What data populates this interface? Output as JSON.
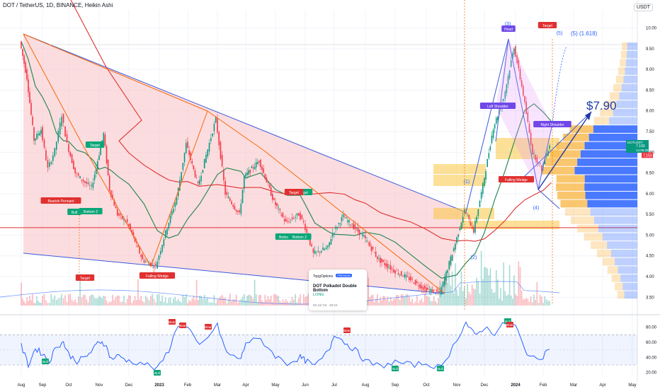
{
  "header": {
    "title": "DOT / TetherUS, 1D, BINANCE, Heikin Ashi",
    "unit_badge": "USDT"
  },
  "colors": {
    "bull": "#089981",
    "bear": "#f23645",
    "ma_green": "#2e8b57",
    "ma_red": "#e03131",
    "rsi": "#2962ff",
    "wedge_fill": "#f8b4b8",
    "zone": "#f9c742",
    "profile_blue": "#2962ff",
    "profile_orange": "#f9b84a",
    "projection": "#1e3aa8"
  },
  "chart_data": [
    {
      "type": "candlestick",
      "title": "DOT / TetherUS, 1D, BINANCE, Heikin Ashi",
      "x_ticks": [
        "Aug",
        "Sep",
        "Oct",
        "Nov",
        "Dec",
        "2023",
        "Feb",
        "Mar",
        "Apr",
        "May",
        "Jun",
        "Jul",
        "Aug",
        "Sep",
        "Oct",
        "Nov",
        "Dec",
        "2024",
        "Feb",
        "Mar",
        "Apr",
        "May"
      ],
      "y_ticks": [
        "3.50",
        "4.00",
        "4.50",
        "5.00",
        "5.50",
        "6.00",
        "6.50",
        "7.00",
        "7.50",
        "8.00",
        "8.50",
        "9.00",
        "9.50",
        "10.00"
      ],
      "y_range": [
        3.3,
        10.3
      ],
      "last_price": "7.193",
      "price_label": "DOTUSDT",
      "countdown": "14:08:28",
      "price_tag_2": "7.153",
      "price_path": [
        {
          "t": "Aug",
          "p": 9.68
        },
        {
          "t": "Aug+10",
          "p": 8.8
        },
        {
          "t": "Aug+20",
          "p": 7.3
        },
        {
          "t": "Sep",
          "p": 7.55
        },
        {
          "t": "Sep+8",
          "p": 6.6
        },
        {
          "t": "Sep+16",
          "p": 7.05
        },
        {
          "t": "Sep+24",
          "p": 7.9
        },
        {
          "t": "Oct",
          "p": 7.2
        },
        {
          "t": "Oct+8",
          "p": 6.5
        },
        {
          "t": "Oct+16",
          "p": 6.3
        },
        {
          "t": "Oct+24",
          "p": 6.15
        },
        {
          "t": "Nov",
          "p": 6.8
        },
        {
          "t": "Nov+6",
          "p": 7.45
        },
        {
          "t": "Nov+12",
          "p": 6.1
        },
        {
          "t": "Nov+20",
          "p": 5.5
        },
        {
          "t": "Dec",
          "p": 5.3
        },
        {
          "t": "Dec+15",
          "p": 4.4
        },
        {
          "t": "Dec+28",
          "p": 4.25
        },
        {
          "t": "2023+10",
          "p": 5.2
        },
        {
          "t": "2023+20",
          "p": 5.9
        },
        {
          "t": "Feb",
          "p": 7.2
        },
        {
          "t": "Feb+12",
          "p": 6.2
        },
        {
          "t": "Mar",
          "p": 7.8
        },
        {
          "t": "Mar+10",
          "p": 6.0
        },
        {
          "t": "Mar+25",
          "p": 5.5
        },
        {
          "t": "Apr",
          "p": 6.4
        },
        {
          "t": "Apr+15",
          "p": 6.8
        },
        {
          "t": "May",
          "p": 5.8
        },
        {
          "t": "May+12",
          "p": 5.3
        },
        {
          "t": "May+25",
          "p": 5.5
        },
        {
          "t": "Jun",
          "p": 5.3
        },
        {
          "t": "Jun+10",
          "p": 4.55
        },
        {
          "t": "Jun+25",
          "p": 4.7
        },
        {
          "t": "Jul",
          "p": 5.05
        },
        {
          "t": "Jul+10",
          "p": 5.45
        },
        {
          "t": "Jul+20",
          "p": 5.2
        },
        {
          "t": "Aug",
          "p": 4.95
        },
        {
          "t": "Aug+15",
          "p": 4.4
        },
        {
          "t": "Sep",
          "p": 4.15
        },
        {
          "t": "Sep+15",
          "p": 3.95
        },
        {
          "t": "Oct",
          "p": 3.7
        },
        {
          "t": "Oct+15",
          "p": 3.6
        },
        {
          "t": "Nov",
          "p": 4.8
        },
        {
          "t": "Nov+10",
          "p": 5.6
        },
        {
          "t": "Nov+20",
          "p": 5.1
        },
        {
          "t": "Dec",
          "p": 6.2
        },
        {
          "t": "Dec+10",
          "p": 7.6
        },
        {
          "t": "Dec+20",
          "p": 8.3
        },
        {
          "t": "2024",
          "p": 9.55
        },
        {
          "t": "2024+10",
          "p": 8.4
        },
        {
          "t": "2024+20",
          "p": 7.0
        },
        {
          "t": "Feb",
          "p": 6.6
        },
        {
          "t": "Feb+8",
          "p": 7.19
        }
      ],
      "annotations": {
        "labels": [
          {
            "text": "Target",
            "kind": "green"
          },
          {
            "text": "Target",
            "kind": "green"
          },
          {
            "text": "Bearish Pennant",
            "kind": "red"
          },
          {
            "text": "Bull",
            "kind": "green"
          },
          {
            "text": "Bottom 2",
            "kind": "green"
          },
          {
            "text": "Target",
            "kind": "red"
          },
          {
            "text": "Falling Wedge",
            "kind": "red"
          },
          {
            "text": "Target",
            "kind": "red"
          },
          {
            "text": "Bottom",
            "kind": "green"
          },
          {
            "text": "Bottom 2",
            "kind": "green"
          },
          {
            "text": "Head",
            "kind": "purple"
          },
          {
            "text": "Target",
            "kind": "red"
          },
          {
            "text": "Left Shoulder",
            "kind": "purple"
          },
          {
            "text": "Right Shoulder",
            "kind": "purple"
          },
          {
            "text": "Falling Wedge",
            "kind": "red"
          }
        ],
        "waves": [
          "(1)",
          "(2)",
          "(3)",
          "(4)",
          "(5)"
        ],
        "projection_label": "(5) (1.618)",
        "target_price": "$7.90"
      }
    },
    {
      "type": "line",
      "title": "",
      "y_ticks": [
        "80.00",
        "60.00",
        "40.00",
        "20.00"
      ],
      "y_range": [
        15,
        90
      ],
      "bands": [
        30,
        70
      ],
      "rsi_path": [
        {
          "t": "Aug",
          "v": 55
        },
        {
          "t": "Aug+10",
          "v": 30
        },
        {
          "t": "Aug+20",
          "v": 52
        },
        {
          "t": "Sep",
          "v": 45
        },
        {
          "t": "Sep+8",
          "v": 35
        },
        {
          "t": "Sep+16",
          "v": 55
        },
        {
          "t": "Sep+24",
          "v": 60
        },
        {
          "t": "Oct",
          "v": 44
        },
        {
          "t": "Oct+8",
          "v": 35
        },
        {
          "t": "Oct+16",
          "v": 40
        },
        {
          "t": "Oct+24",
          "v": 50
        },
        {
          "t": "Nov",
          "v": 62
        },
        {
          "t": "Nov+6",
          "v": 58
        },
        {
          "t": "Nov+12",
          "v": 38
        },
        {
          "t": "Nov+20",
          "v": 42
        },
        {
          "t": "Dec",
          "v": 35
        },
        {
          "t": "Dec+15",
          "v": 32
        },
        {
          "t": "Dec+28",
          "v": 24
        },
        {
          "t": "2023+10",
          "v": 50
        },
        {
          "t": "2023+20",
          "v": 84
        },
        {
          "t": "Feb",
          "v": 78
        },
        {
          "t": "Feb+12",
          "v": 55
        },
        {
          "t": "Mar",
          "v": 82
        },
        {
          "t": "Mar+10",
          "v": 45
        },
        {
          "t": "Mar+25",
          "v": 38
        },
        {
          "t": "Apr",
          "v": 60
        },
        {
          "t": "Apr+15",
          "v": 64
        },
        {
          "t": "May",
          "v": 42
        },
        {
          "t": "May+12",
          "v": 32
        },
        {
          "t": "May+25",
          "v": 40
        },
        {
          "t": "Jun",
          "v": 36
        },
        {
          "t": "Jun+10",
          "v": 28
        },
        {
          "t": "Jun+25",
          "v": 50
        },
        {
          "t": "Jul",
          "v": 72
        },
        {
          "t": "Jul+10",
          "v": 60
        },
        {
          "t": "Jul+20",
          "v": 50
        },
        {
          "t": "Aug",
          "v": 35
        },
        {
          "t": "Aug+15",
          "v": 28
        },
        {
          "t": "Sep",
          "v": 34
        },
        {
          "t": "Sep+15",
          "v": 30
        },
        {
          "t": "Oct",
          "v": 32
        },
        {
          "t": "Oct+15",
          "v": 26
        },
        {
          "t": "Nov",
          "v": 64
        },
        {
          "t": "Nov+10",
          "v": 86
        },
        {
          "t": "Nov+20",
          "v": 68
        },
        {
          "t": "Dec",
          "v": 80
        },
        {
          "t": "Dec+10",
          "v": 72
        },
        {
          "t": "Dec+20",
          "v": 86
        },
        {
          "t": "2024",
          "v": 82
        },
        {
          "t": "2024+10",
          "v": 50
        },
        {
          "t": "2024+20",
          "v": 38
        },
        {
          "t": "Feb",
          "v": 42
        },
        {
          "t": "Feb+8",
          "v": 58
        }
      ],
      "signals": [
        {
          "text": "Bull",
          "kind": "green"
        },
        {
          "text": "Bull",
          "kind": "green"
        },
        {
          "text": "Bear",
          "kind": "red"
        },
        {
          "text": "Bear",
          "kind": "red"
        },
        {
          "text": "Bear",
          "kind": "red"
        },
        {
          "text": "Bear",
          "kind": "red"
        },
        {
          "text": "Bull",
          "kind": "green"
        },
        {
          "text": "Bull",
          "kind": "green"
        },
        {
          "text": "Bull",
          "kind": "green"
        },
        {
          "text": "Bear",
          "kind": "red"
        }
      ]
    }
  ],
  "watermark": {
    "brand": "TopgOptions",
    "badge": "PREMIUM",
    "title": "DOT Polkadot Double Bottom",
    "direction": "LONG",
    "date": "03 Jul '23 · 20:24"
  }
}
